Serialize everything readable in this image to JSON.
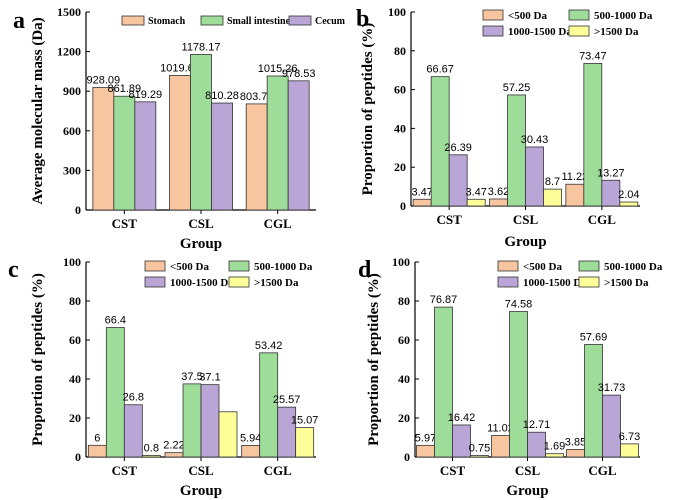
{
  "colors": {
    "stomach": "#F7C59F",
    "small_intestine": "#9EDC9A",
    "cecum": "#B9A5D6",
    "lt500": "#F7C59F",
    "r500_1000": "#9EDC9A",
    "r1000_1500": "#B9A5D6",
    "gt1500": "#FFFF99",
    "edge": "#333333"
  },
  "chart_data": [
    {
      "panel": "a",
      "type": "bar",
      "title": "",
      "categories": [
        "CST",
        "CSL",
        "CGL"
      ],
      "xlabel": "Group",
      "ylabel": "Average molecular mass (Da)",
      "ylim": [
        0,
        1500
      ],
      "yticks": [
        0,
        300,
        600,
        900,
        1200,
        1500
      ],
      "legend_position": "top",
      "series": [
        {
          "name": "Stomach",
          "color_key": "stomach",
          "values": [
            928.09,
            1019.66,
            803.78
          ],
          "labels": [
            "928.09",
            "1019.66",
            "803.78"
          ]
        },
        {
          "name": "Small intestine",
          "color_key": "small_intestine",
          "values": [
            861.89,
            1178.17,
            1015.26
          ],
          "labels": [
            "861.89",
            "1178.17",
            "1015.26"
          ]
        },
        {
          "name": "Cecum",
          "color_key": "cecum",
          "values": [
            819.29,
            810.28,
            978.53
          ],
          "labels": [
            "819.29",
            "810.28",
            "978.53"
          ]
        }
      ]
    },
    {
      "panel": "b",
      "type": "bar",
      "title": "",
      "categories": [
        "CST",
        "CSL",
        "CGL"
      ],
      "xlabel": "Group",
      "ylabel": "Proportion of peptides (%)",
      "ylim": [
        0,
        100
      ],
      "yticks": [
        0,
        20,
        40,
        60,
        80,
        100
      ],
      "legend_position": "top-right",
      "series": [
        {
          "name": "<500 Da",
          "color_key": "lt500",
          "values": [
            3.47,
            3.62,
            11.22
          ],
          "labels": [
            "3.47",
            "3.62",
            "11.22"
          ]
        },
        {
          "name": "500-1000 Da",
          "color_key": "r500_1000",
          "values": [
            66.67,
            57.25,
            73.47
          ],
          "labels": [
            "66.67",
            "57.25",
            "73.47"
          ]
        },
        {
          "name": "1000-1500 Da",
          "color_key": "r1000_1500",
          "values": [
            26.39,
            30.43,
            13.27
          ],
          "labels": [
            "26.39",
            "30.43",
            "13.27"
          ]
        },
        {
          "name": ">1500 Da",
          "color_key": "gt1500",
          "values": [
            3.47,
            8.7,
            2.04
          ],
          "labels": [
            "3.47",
            "8.7",
            "2.04"
          ]
        }
      ]
    },
    {
      "panel": "c",
      "type": "bar",
      "title": "",
      "categories": [
        "CST",
        "CSL",
        "CGL"
      ],
      "xlabel": "Group",
      "ylabel": "Proportion of peptides (%)",
      "ylim": [
        0,
        100
      ],
      "yticks": [
        0,
        20,
        40,
        60,
        80,
        100
      ],
      "legend_position": "top-right",
      "series": [
        {
          "name": "<500 Da",
          "color_key": "lt500",
          "values": [
            6,
            2.22,
            5.94
          ],
          "labels": [
            "6",
            "2.22",
            "5.94"
          ]
        },
        {
          "name": "500-1000 Da",
          "color_key": "r500_1000",
          "values": [
            66.4,
            37.5,
            53.42
          ],
          "labels": [
            "66.4",
            "37.5",
            "53.42"
          ]
        },
        {
          "name": "1000-1500 Da",
          "color_key": "r1000_1500",
          "values": [
            26.8,
            37.1,
            25.57
          ],
          "labels": [
            "26.8",
            "37.1",
            "25.57"
          ]
        },
        {
          "name": ">1500 Da",
          "color_key": "gt1500",
          "values": [
            0.8,
            23.19,
            15.07
          ],
          "labels": [
            "0.8",
            "",
            "15.07"
          ]
        }
      ]
    },
    {
      "panel": "d",
      "type": "bar",
      "title": "",
      "categories": [
        "CST",
        "CSL",
        "CGL"
      ],
      "xlabel": "Group",
      "ylabel": "Proportion of peptides (%)",
      "ylim": [
        0,
        100
      ],
      "yticks": [
        0,
        20,
        40,
        60,
        80,
        100
      ],
      "legend_position": "top-right",
      "series": [
        {
          "name": "<500 Da",
          "color_key": "lt500",
          "values": [
            5.97,
            11.02,
            3.85
          ],
          "labels": [
            "5.97",
            "11.02",
            "3.85"
          ]
        },
        {
          "name": "500-1000 Da",
          "color_key": "r500_1000",
          "values": [
            76.87,
            74.58,
            57.69
          ],
          "labels": [
            "76.87",
            "74.58",
            "57.69"
          ]
        },
        {
          "name": "1000-1500 Da",
          "color_key": "r1000_1500",
          "values": [
            16.42,
            12.71,
            31.73
          ],
          "labels": [
            "16.42",
            "12.71",
            "31.73"
          ]
        },
        {
          "name": ">1500 Da",
          "color_key": "gt1500",
          "values": [
            0.75,
            1.69,
            6.73
          ],
          "labels": [
            "0.75",
            "1.69",
            "6.73"
          ]
        }
      ]
    }
  ]
}
